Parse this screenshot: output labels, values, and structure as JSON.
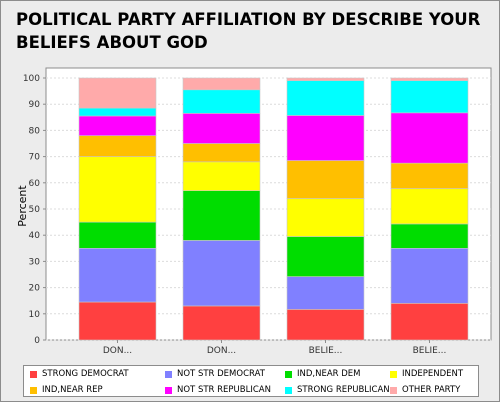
{
  "title": "POLITICAL PARTY AFFILIATION BY DESCRIBE YOUR BELIEFS ABOUT GOD",
  "chart_data": {
    "type": "bar",
    "stacked": true,
    "title": "POLITICAL PARTY AFFILIATION BY DESCRIBE YOUR BELIEFS ABOUT GOD",
    "xlabel": "",
    "ylabel": "Percent",
    "ylim": [
      0,
      100
    ],
    "yticks": [
      0,
      10,
      20,
      30,
      40,
      50,
      60,
      70,
      80,
      90,
      100
    ],
    "grid": true,
    "legend_position": "bottom",
    "categories": [
      "DON...",
      "DON...",
      "BELIE...",
      "BELIE..."
    ],
    "series": [
      {
        "name": "STRONG DEMOCRAT",
        "color": "#ff4040",
        "values": [
          14.5,
          13.0,
          11.7,
          14.0
        ]
      },
      {
        "name": "NOT STR DEMOCRAT",
        "color": "#8080ff",
        "values": [
          20.5,
          25.0,
          12.5,
          21.0
        ]
      },
      {
        "name": "IND,NEAR DEM",
        "color": "#00dd00",
        "values": [
          10.0,
          19.0,
          15.3,
          9.3
        ]
      },
      {
        "name": "INDEPENDENT",
        "color": "#ffff00",
        "values": [
          25.0,
          11.0,
          14.5,
          13.5
        ]
      },
      {
        "name": "IND,NEAR REP",
        "color": "#ffbf00",
        "values": [
          8.0,
          7.0,
          14.5,
          9.7
        ]
      },
      {
        "name": "NOT STR REPUBLICAN",
        "color": "#ff00ff",
        "values": [
          7.5,
          11.5,
          17.2,
          19.2
        ]
      },
      {
        "name": "STRONG REPUBLICAN",
        "color": "#00ffff",
        "values": [
          3.0,
          9.0,
          13.3,
          12.3
        ]
      },
      {
        "name": "OTHER PARTY",
        "color": "#ffaaaa",
        "values": [
          11.5,
          4.5,
          1.0,
          1.0
        ]
      }
    ]
  }
}
